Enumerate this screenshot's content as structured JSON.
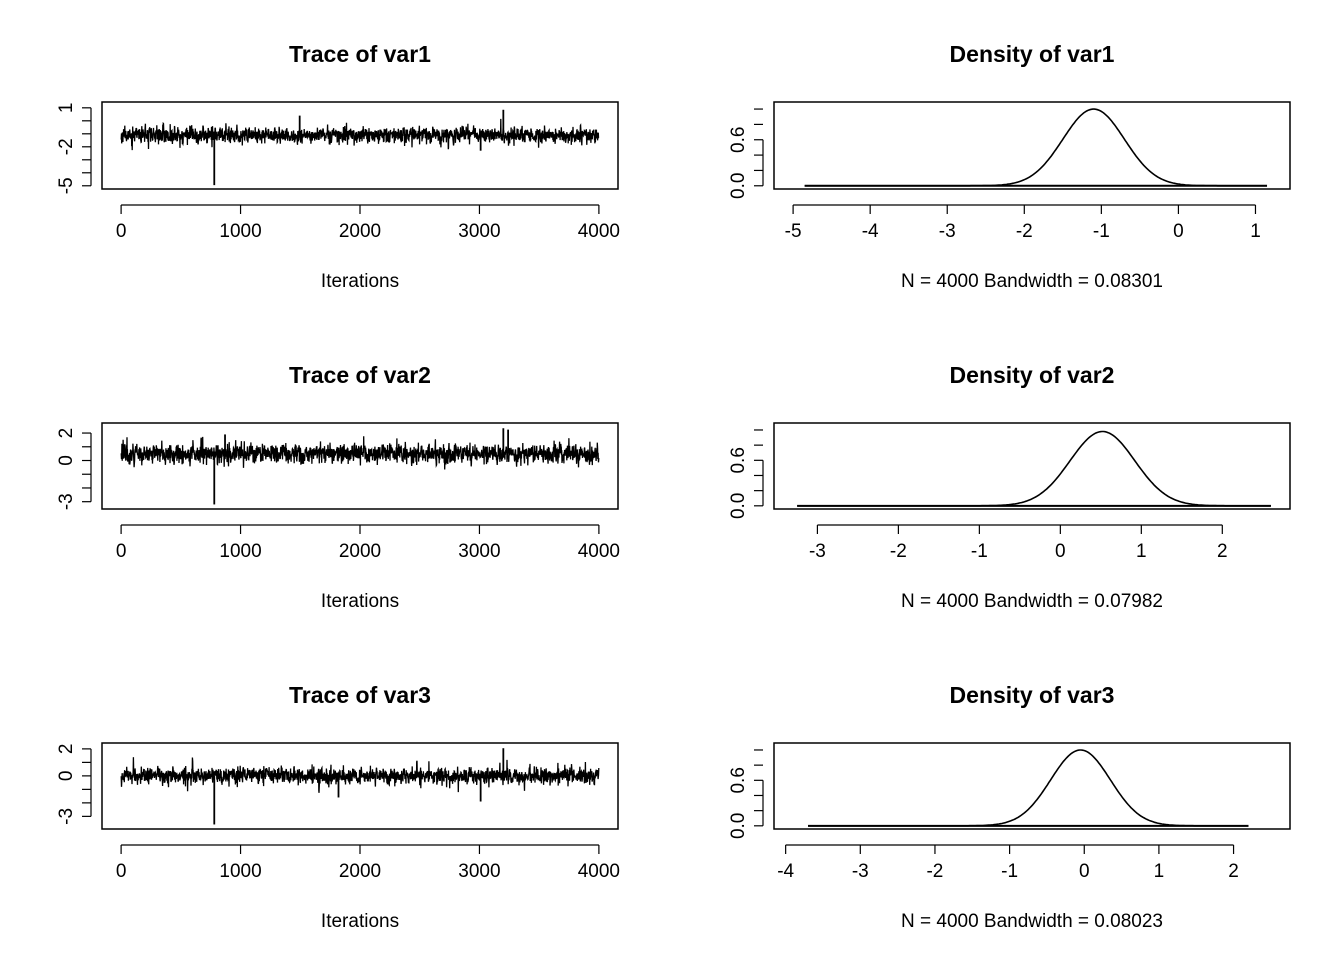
{
  "chart_data": [
    {
      "type": "line",
      "panel": "trace",
      "title": "Trace of var1",
      "xlabel": "Iterations",
      "xlim": [
        0,
        4000
      ],
      "ylim": [
        -5.0,
        1.2
      ],
      "x_ticks": [
        0,
        1000,
        2000,
        3000,
        4000
      ],
      "x_tick_labels": [
        "0",
        "1000",
        "2000",
        "3000",
        "4000"
      ],
      "y_ticks": [
        -5,
        -2,
        1
      ],
      "y_tick_labels": [
        "-5",
        "-2",
        "1"
      ],
      "trace": {
        "n": 4000,
        "center": -1.1,
        "spread": 0.35,
        "seed": 11,
        "spikes": [
          {
            "x": 780,
            "y": -4.95
          },
          {
            "x": 3200,
            "y": 0.85
          },
          {
            "x": 3010,
            "y": -2.3
          },
          {
            "x": 1495,
            "y": 0.4
          }
        ]
      }
    },
    {
      "type": "area",
      "panel": "density",
      "title": "Density of var1",
      "xlabel": "N = 4000   Bandwidth = 0.08301",
      "xlim": [
        -5.0,
        1.2
      ],
      "ylim": [
        0,
        1.05
      ],
      "x_ticks": [
        -5,
        -4,
        -3,
        -2,
        -1,
        0,
        1
      ],
      "x_tick_labels": [
        "-5",
        "-4",
        "-3",
        "-2",
        "-1",
        "0",
        "1"
      ],
      "y_ticks": [
        0,
        0.6
      ],
      "y_tick_labels": [
        "0.0",
        "0.6"
      ],
      "density": {
        "x_start": -4.85,
        "x_end": 1.15,
        "mean": -1.1,
        "sd": 0.4,
        "peak": 1.0
      }
    },
    {
      "type": "line",
      "panel": "trace",
      "title": "Trace of var2",
      "xlabel": "Iterations",
      "xlim": [
        0,
        4000
      ],
      "ylim": [
        -3.3,
        2.5
      ],
      "x_ticks": [
        0,
        1000,
        2000,
        3000,
        4000
      ],
      "x_tick_labels": [
        "0",
        "1000",
        "2000",
        "3000",
        "4000"
      ],
      "y_ticks": [
        -3,
        0,
        2
      ],
      "y_tick_labels": [
        "-3",
        "0",
        "2"
      ],
      "trace": {
        "n": 4000,
        "center": 0.5,
        "spread": 0.4,
        "seed": 22,
        "spikes": [
          {
            "x": 780,
            "y": -3.2
          },
          {
            "x": 3200,
            "y": 2.35
          },
          {
            "x": 3240,
            "y": 2.25
          },
          {
            "x": 870,
            "y": 1.9
          }
        ]
      }
    },
    {
      "type": "area",
      "panel": "density",
      "title": "Density of var2",
      "xlabel": "N = 4000   Bandwidth = 0.07982",
      "xlim": [
        -3.3,
        2.6
      ],
      "ylim": [
        0,
        1.05
      ],
      "x_ticks": [
        -3,
        -2,
        -1,
        0,
        1,
        2
      ],
      "x_tick_labels": [
        "-3",
        "-2",
        "-1",
        "0",
        "1",
        "2"
      ],
      "y_ticks": [
        0,
        0.6
      ],
      "y_tick_labels": [
        "0.0",
        "0.6"
      ],
      "density": {
        "x_start": -3.25,
        "x_end": 2.6,
        "mean": 0.52,
        "sd": 0.4,
        "peak": 0.98
      }
    },
    {
      "type": "line",
      "panel": "trace",
      "title": "Trace of var3",
      "xlabel": "Iterations",
      "xlim": [
        0,
        4000
      ],
      "ylim": [
        -3.7,
        2.2
      ],
      "x_ticks": [
        0,
        1000,
        2000,
        3000,
        4000
      ],
      "x_tick_labels": [
        "0",
        "1000",
        "2000",
        "3000",
        "4000"
      ],
      "y_ticks": [
        -3,
        0,
        2
      ],
      "y_tick_labels": [
        "-3",
        "0",
        "2"
      ],
      "trace": {
        "n": 4000,
        "center": 0.0,
        "spread": 0.35,
        "seed": 33,
        "spikes": [
          {
            "x": 780,
            "y": -3.6
          },
          {
            "x": 3200,
            "y": 2.05
          },
          {
            "x": 3010,
            "y": -1.9
          },
          {
            "x": 1820,
            "y": -1.6
          }
        ]
      }
    },
    {
      "type": "area",
      "panel": "density",
      "title": "Density of var3",
      "xlabel": "N = 4000   Bandwidth = 0.08023",
      "xlim": [
        -3.9,
        2.5
      ],
      "ylim": [
        0,
        1.05
      ],
      "x_ticks": [
        -4,
        -3,
        -2,
        -1,
        0,
        1,
        2
      ],
      "x_tick_labels": [
        "-4",
        "-3",
        "-2",
        "-1",
        "0",
        "1",
        "2"
      ],
      "y_ticks": [
        0,
        0.6
      ],
      "y_tick_labels": [
        "0.0",
        "0.6"
      ],
      "density": {
        "x_start": -3.7,
        "x_end": 2.2,
        "mean": -0.05,
        "sd": 0.4,
        "peak": 1.0
      }
    }
  ]
}
